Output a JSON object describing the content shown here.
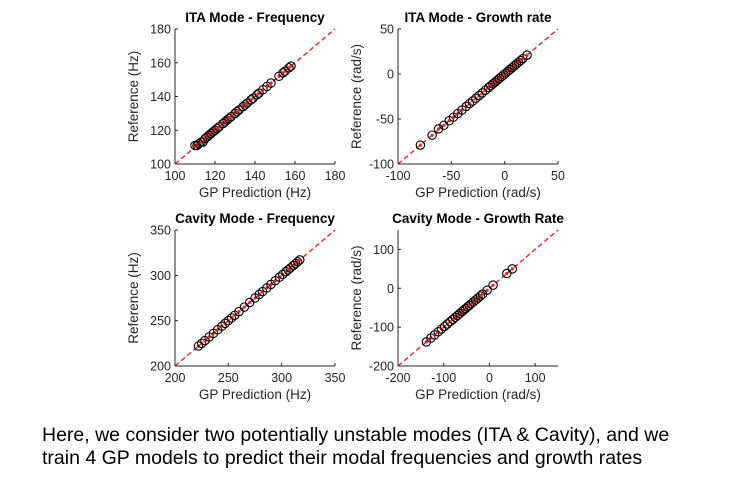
{
  "chart_data": [
    {
      "type": "scatter",
      "title": "ITA Mode - Frequency",
      "xlabel": "GP Prediction (Hz)",
      "ylabel": "Reference (Hz)",
      "xlim": [
        100,
        180
      ],
      "ylim": [
        100,
        180
      ],
      "xticks": [
        100,
        120,
        140,
        160,
        180
      ],
      "yticks": [
        100,
        120,
        140,
        160,
        180
      ],
      "reference_line": "y = x",
      "points": [
        [
          110,
          111
        ],
        [
          111,
          111
        ],
        [
          112,
          112
        ],
        [
          113,
          113
        ],
        [
          114,
          113
        ],
        [
          115,
          115
        ],
        [
          116,
          116
        ],
        [
          117,
          117
        ],
        [
          118,
          118
        ],
        [
          119,
          119
        ],
        [
          120,
          120
        ],
        [
          121,
          121
        ],
        [
          122,
          122
        ],
        [
          124,
          124
        ],
        [
          125,
          125
        ],
        [
          126,
          126
        ],
        [
          127,
          127
        ],
        [
          128,
          128
        ],
        [
          130,
          130
        ],
        [
          131,
          131
        ],
        [
          132,
          132
        ],
        [
          134,
          134
        ],
        [
          135,
          135
        ],
        [
          136,
          136
        ],
        [
          138,
          138
        ],
        [
          139,
          139
        ],
        [
          141,
          141
        ],
        [
          142,
          142
        ],
        [
          144,
          144
        ],
        [
          146,
          146
        ],
        [
          148,
          148
        ],
        [
          152,
          152
        ],
        [
          154,
          154
        ],
        [
          155,
          155
        ],
        [
          157,
          157
        ],
        [
          158,
          158
        ]
      ]
    },
    {
      "type": "scatter",
      "title": "ITA Mode - Growth rate",
      "xlabel": "GP Prediction (rad/s)",
      "ylabel": "Reference (rad/s)",
      "xlim": [
        -100,
        50
      ],
      "ylim": [
        -100,
        50
      ],
      "xticks": [
        -100,
        -50,
        0,
        50
      ],
      "yticks": [
        -100,
        -50,
        0,
        50
      ],
      "reference_line": "y = x",
      "points": [
        [
          -79,
          -79
        ],
        [
          -68,
          -68
        ],
        [
          -62,
          -61
        ],
        [
          -57,
          -57
        ],
        [
          -52,
          -52
        ],
        [
          -48,
          -48
        ],
        [
          -44,
          -44
        ],
        [
          -40,
          -40
        ],
        [
          -36,
          -36
        ],
        [
          -33,
          -33
        ],
        [
          -30,
          -30
        ],
        [
          -27,
          -27
        ],
        [
          -24,
          -24
        ],
        [
          -21,
          -21
        ],
        [
          -18,
          -18
        ],
        [
          -15,
          -15
        ],
        [
          -13,
          -13
        ],
        [
          -11,
          -11
        ],
        [
          -9,
          -9
        ],
        [
          -7,
          -7
        ],
        [
          -5,
          -5
        ],
        [
          -3,
          -3
        ],
        [
          -1,
          -1
        ],
        [
          1,
          1
        ],
        [
          3,
          3
        ],
        [
          5,
          5
        ],
        [
          7,
          7
        ],
        [
          9,
          9
        ],
        [
          11,
          11
        ],
        [
          13,
          13
        ],
        [
          15,
          15
        ],
        [
          17,
          17
        ],
        [
          21,
          21
        ]
      ]
    },
    {
      "type": "scatter",
      "title": "Cavity Mode - Frequency",
      "xlabel": "GP Prediction (Hz)",
      "ylabel": "Reference (Hz)",
      "xlim": [
        200,
        350
      ],
      "ylim": [
        200,
        350
      ],
      "xticks": [
        200,
        250,
        300,
        350
      ],
      "yticks": [
        200,
        250,
        300,
        350
      ],
      "reference_line": "y = x",
      "points": [
        [
          222,
          222
        ],
        [
          225,
          225
        ],
        [
          228,
          228
        ],
        [
          232,
          232
        ],
        [
          236,
          236
        ],
        [
          240,
          240
        ],
        [
          244,
          244
        ],
        [
          247,
          247
        ],
        [
          250,
          250
        ],
        [
          253,
          253
        ],
        [
          256,
          256
        ],
        [
          260,
          260
        ],
        [
          265,
          265
        ],
        [
          270,
          270
        ],
        [
          275,
          275
        ],
        [
          279,
          279
        ],
        [
          282,
          282
        ],
        [
          286,
          286
        ],
        [
          290,
          290
        ],
        [
          294,
          294
        ],
        [
          298,
          298
        ],
        [
          301,
          301
        ],
        [
          304,
          304
        ],
        [
          306,
          306
        ],
        [
          308,
          308
        ],
        [
          311,
          311
        ],
        [
          313,
          313
        ],
        [
          315,
          315
        ],
        [
          317,
          317
        ]
      ]
    },
    {
      "type": "scatter",
      "title": "Cavity Mode - Growth Rate",
      "xlabel": "GP Prediction (rad/s)",
      "ylabel": "Reference (rad/s)",
      "xlim": [
        -200,
        150
      ],
      "ylim": [
        -200,
        150
      ],
      "xticks": [
        -200,
        -100,
        0,
        100
      ],
      "yticks": [
        -200,
        -100,
        0,
        100
      ],
      "reference_line": "y = x",
      "points": [
        [
          -138,
          -138
        ],
        [
          -128,
          -128
        ],
        [
          -120,
          -120
        ],
        [
          -112,
          -112
        ],
        [
          -105,
          -105
        ],
        [
          -98,
          -98
        ],
        [
          -92,
          -92
        ],
        [
          -86,
          -86
        ],
        [
          -80,
          -80
        ],
        [
          -75,
          -75
        ],
        [
          -70,
          -70
        ],
        [
          -65,
          -65
        ],
        [
          -60,
          -60
        ],
        [
          -56,
          -56
        ],
        [
          -52,
          -52
        ],
        [
          -48,
          -48
        ],
        [
          -44,
          -44
        ],
        [
          -40,
          -40
        ],
        [
          -35,
          -35
        ],
        [
          -30,
          -30
        ],
        [
          -25,
          -25
        ],
        [
          -20,
          -20
        ],
        [
          -15,
          -15
        ],
        [
          -5,
          -5
        ],
        [
          8,
          8
        ],
        [
          38,
          38
        ],
        [
          50,
          50
        ]
      ]
    }
  ],
  "caption": {
    "line1": "Here, we consider two potentially unstable modes (ITA & Cavity), and we",
    "line2": "train 4 GP models to predict their modal frequencies and growth rates"
  }
}
